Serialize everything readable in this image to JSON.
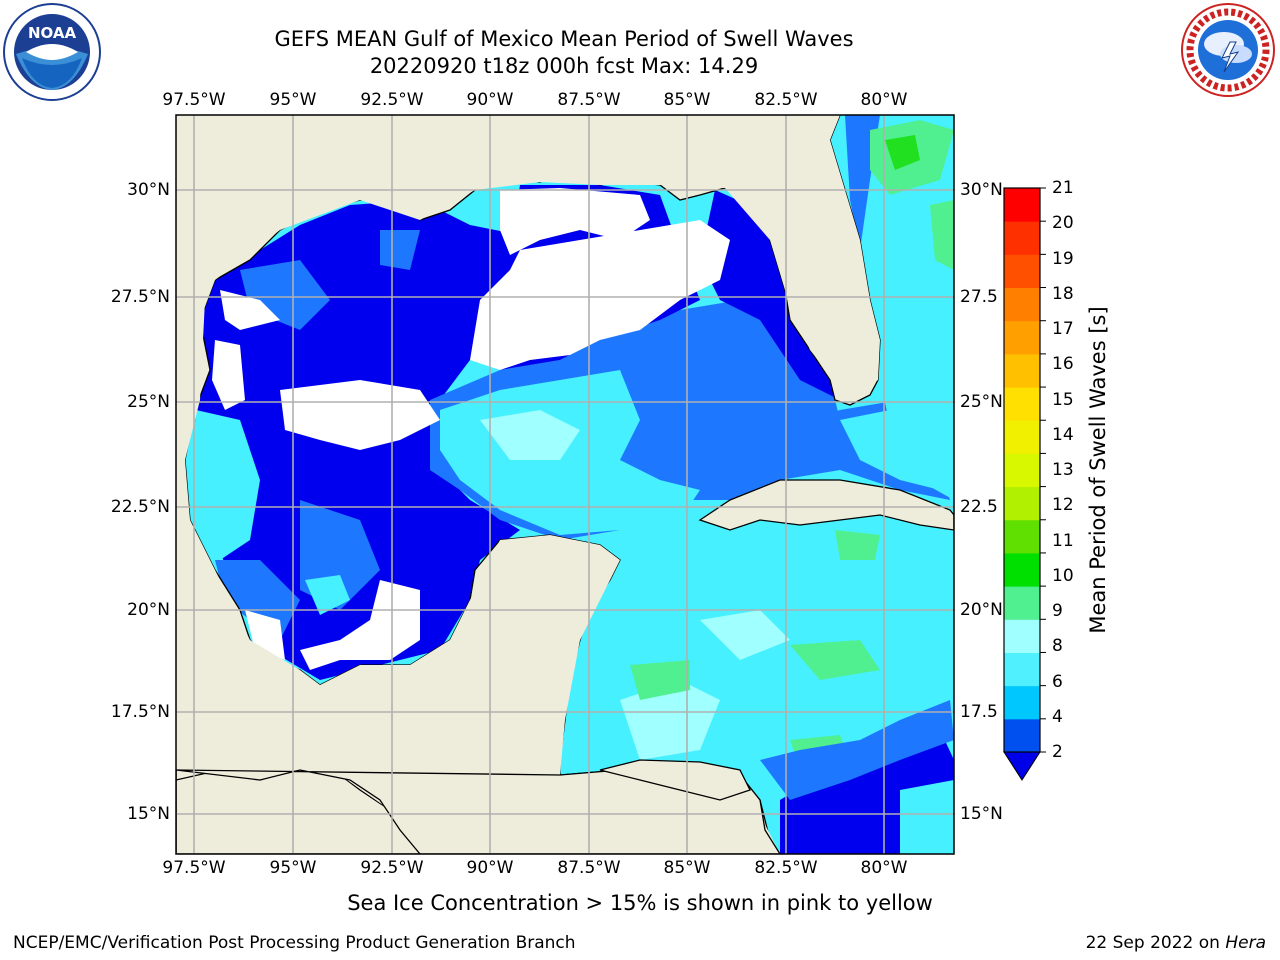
{
  "title": "GEFS MEAN Gulf of Mexico Mean Period of Swell Waves",
  "subtitle": "20220920 t18z 000h fcst   Max: 14.29",
  "longitude_labels": [
    "97.5°W",
    "95°W",
    "92.5°W",
    "90°W",
    "87.5°W",
    "85°W",
    "82.5°W",
    "80°W"
  ],
  "latitude_labels": [
    "30°N",
    "27.5°N",
    "25°N",
    "22.5°N",
    "20°N",
    "17.5°N",
    "15°N"
  ],
  "latitude_labels_right": [
    "30°N",
    "27.5",
    "25°N",
    "22.5",
    "20°N",
    "17.5",
    "15°N"
  ],
  "colorbar": {
    "title": "Mean Period of Swell Waves [s]",
    "ticks": [
      "21",
      "20",
      "19",
      "18",
      "17",
      "16",
      "15",
      "14",
      "13",
      "12",
      "11",
      "10",
      "9",
      "8",
      "6",
      "4",
      "2"
    ],
    "colors": [
      "#0050f0",
      "#00c8ff",
      "#50f0ff",
      "#a0ffff",
      "#50f090",
      "#00e000",
      "#60e000",
      "#b0f000",
      "#d8f800",
      "#f0f000",
      "#ffe000",
      "#ffc000",
      "#ffa000",
      "#ff8000",
      "#ff5000",
      "#ff3000",
      "#ff0000"
    ],
    "under_color": "#0000e8"
  },
  "note": "Sea Ice Concentration > 15% is shown in pink to yellow",
  "footer_left": "NCEP/EMC/Verification Post Processing Product Generation Branch",
  "footer_right_date": "22 Sep 2022 on",
  "footer_right_machine": "Hera",
  "logos": {
    "noaa_text": "NOAA",
    "nws_text": "NATIONAL WEATHER SERVICE"
  },
  "map_colors": {
    "land": "#eeeddc",
    "deep_blue": "#0000ee",
    "blue": "#1e78ff",
    "cyan": "#46f0ff",
    "light_cyan": "#a0ffff",
    "green": "#50f090",
    "bright_green": "#20e020",
    "yellow_green": "#c0f000",
    "grid": "#b0b0b0"
  }
}
